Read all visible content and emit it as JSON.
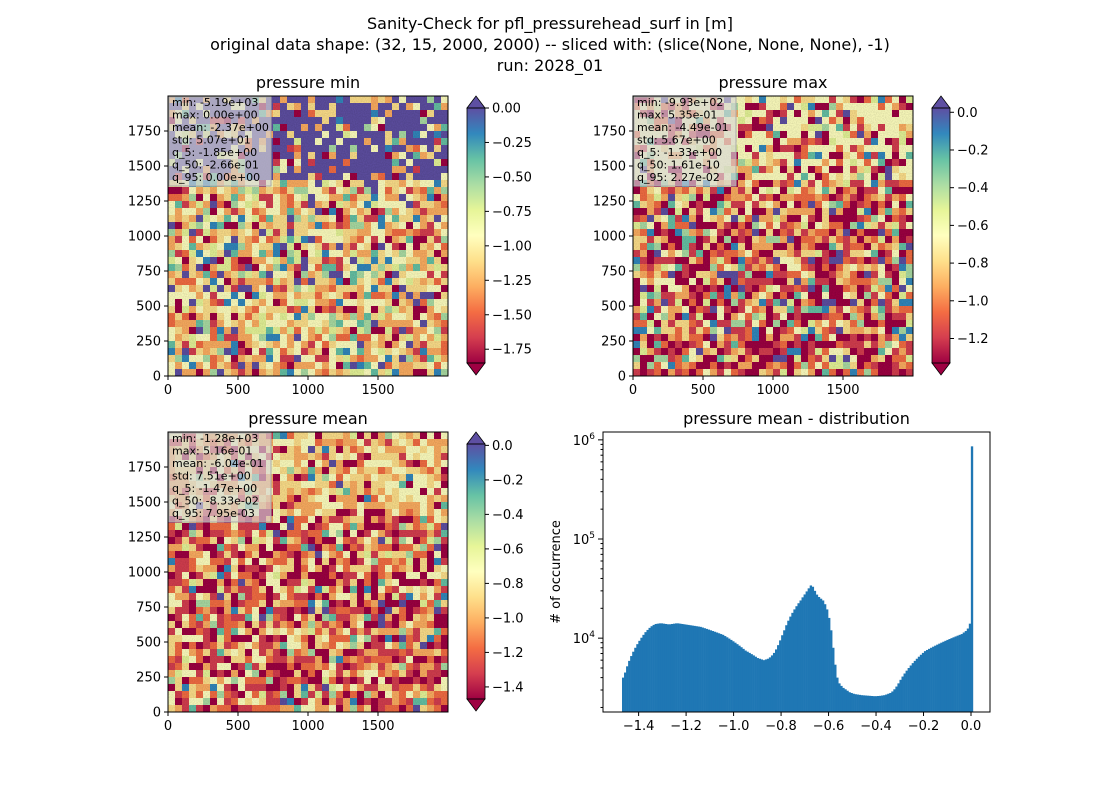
{
  "figure": {
    "title_lines": [
      "Sanity-Check for pfl_pressurehead_surf in [m]",
      "original data shape: (32, 15, 2000, 2000) -- sliced with: (slice(None, None, None), -1)",
      "run: 2028_01"
    ]
  },
  "colors": {
    "spectral": [
      "#9e0142",
      "#d53e4f",
      "#f46d43",
      "#fdae61",
      "#fee08b",
      "#ffffbf",
      "#e6f598",
      "#abdda4",
      "#66c2a5",
      "#3288bd",
      "#5e4fa2"
    ],
    "hist_bar": "#1f77b4"
  },
  "chart_data": [
    {
      "type": "heatmap",
      "title": "pressure min",
      "xlim": [
        0,
        2000
      ],
      "ylim": [
        0,
        2000
      ],
      "x_ticks": [
        "0",
        "500",
        "1000",
        "1500"
      ],
      "y_ticks": [
        "0",
        "250",
        "500",
        "750",
        "1000",
        "1250",
        "1500",
        "1750"
      ],
      "colorbar": {
        "vmin": -1.85,
        "vmax": 0.0,
        "extend": "both",
        "ticks": [
          "0.00",
          "-0.25",
          "-0.50",
          "-0.75",
          "-1.00",
          "-1.25",
          "-1.50",
          "-1.75"
        ],
        "tick_values": [
          0.0,
          -0.25,
          -0.5,
          -0.75,
          -1.0,
          -1.25,
          -1.5,
          -1.75
        ]
      },
      "stats": [
        "min: -5.19e+03",
        "max: 0.00e+00",
        "mean: -2.37e+00",
        "std: 5.07e+01",
        "q_5: -1.85e+00",
        "q_50: -2.66e-01",
        "q_95: 0.00e+00"
      ]
    },
    {
      "type": "heatmap",
      "title": "pressure max",
      "xlim": [
        0,
        2000
      ],
      "ylim": [
        0,
        2000
      ],
      "x_ticks": [
        "0",
        "500",
        "1000",
        "1500"
      ],
      "y_ticks": [
        "0",
        "250",
        "500",
        "750",
        "1000",
        "1250",
        "1500",
        "1750"
      ],
      "colorbar": {
        "vmin": -1.33,
        "vmax": 0.0227,
        "extend": "both",
        "ticks": [
          "0.0",
          "-0.2",
          "-0.4",
          "-0.6",
          "-0.8",
          "-1.0",
          "-1.2"
        ],
        "tick_values": [
          0.0,
          -0.2,
          -0.4,
          -0.6,
          -0.8,
          -1.0,
          -1.2
        ]
      },
      "stats": [
        "min: -9.93e+02",
        "max: 5.35e-01",
        "mean: -4.49e-01",
        "std: 5.67e+00",
        "q_5: -1.33e+00",
        "q_50: 1.61e-10",
        "q_95: 2.27e-02"
      ]
    },
    {
      "type": "heatmap",
      "title": "pressure mean",
      "xlim": [
        0,
        2000
      ],
      "ylim": [
        0,
        2000
      ],
      "x_ticks": [
        "0",
        "500",
        "1000",
        "1500"
      ],
      "y_ticks": [
        "0",
        "250",
        "500",
        "750",
        "1000",
        "1250",
        "1500",
        "1750"
      ],
      "colorbar": {
        "vmin": -1.47,
        "vmax": 0.00795,
        "extend": "both",
        "ticks": [
          "0.0",
          "-0.2",
          "-0.4",
          "-0.6",
          "-0.8",
          "-1.0",
          "-1.2",
          "-1.4"
        ],
        "tick_values": [
          0.0,
          -0.2,
          -0.4,
          -0.6,
          -0.8,
          -1.0,
          -1.2,
          -1.4
        ]
      },
      "stats": [
        "min: -1.28e+03",
        "max: 5.16e-01",
        "mean: -6.04e-01",
        "std: 7.51e+00",
        "q_5: -1.47e+00",
        "q_50: -8.33e-02",
        "q_95: 7.95e-03"
      ]
    },
    {
      "type": "bar",
      "title": "pressure mean - distribution",
      "xlabel": "",
      "ylabel": "# of occurrence",
      "yscale": "log",
      "xlim": [
        -1.55,
        0.08
      ],
      "ylim": [
        1800,
        1200000
      ],
      "x_ticks": [
        -1.4,
        -1.2,
        -1.0,
        -0.8,
        -0.6,
        -0.4,
        -0.2,
        0.0
      ],
      "x_tick_labels": [
        "−1.4",
        "−1.2",
        "−1.0",
        "−0.8",
        "−0.6",
        "−0.4",
        "−0.2",
        "0.0"
      ],
      "y_tick_labels": [
        {
          "value": 10000,
          "base": "10",
          "exp": "4"
        },
        {
          "value": 100000,
          "base": "10",
          "exp": "5"
        },
        {
          "value": 1000000,
          "base": "10",
          "exp": "6"
        }
      ],
      "bin_range": [
        -1.47,
        0.00795
      ],
      "bin_counts": [
        4000,
        4500,
        5200,
        5900,
        6600,
        7300,
        8000,
        8700,
        9400,
        10100,
        10800,
        11500,
        12100,
        12700,
        13200,
        13600,
        13900,
        14000,
        14100,
        14100,
        14000,
        13900,
        13800,
        13800,
        13900,
        14000,
        14100,
        14100,
        14000,
        13900,
        13800,
        13700,
        13600,
        13500,
        13400,
        13300,
        13200,
        13100,
        13000,
        12800,
        12600,
        12400,
        12200,
        12000,
        11800,
        11600,
        11400,
        11200,
        11000,
        10800,
        10500,
        10200,
        9900,
        9600,
        9300,
        9000,
        8700,
        8400,
        8100,
        7800,
        7500,
        7300,
        7100,
        6900,
        6700,
        6500,
        6300,
        6200,
        6100,
        6000,
        6100,
        6200,
        6400,
        6700,
        7100,
        7700,
        8500,
        9500,
        10700,
        12000,
        13500,
        15000,
        16500,
        18000,
        19500,
        21000,
        22500,
        24000,
        25800,
        27600,
        29600,
        31800,
        34000,
        33000,
        30000,
        27500,
        26000,
        25000,
        24000,
        22000,
        19500,
        16000,
        12000,
        8000,
        5400,
        4000,
        3500,
        3300,
        3150,
        3050,
        2950,
        2850,
        2800,
        2750,
        2720,
        2700,
        2680,
        2660,
        2650,
        2640,
        2630,
        2620,
        2610,
        2600,
        2600,
        2610,
        2620,
        2640,
        2660,
        2700,
        2750,
        2800,
        2900,
        3050,
        3250,
        3500,
        3800,
        4100,
        4400,
        4700,
        5000,
        5300,
        5600,
        5900,
        6200,
        6500,
        6800,
        7100,
        7400,
        7600,
        7800,
        8000,
        8200,
        8400,
        8600,
        8800,
        9000,
        9200,
        9400,
        9600,
        9800,
        10000,
        10200,
        10400,
        10600,
        10800,
        11000,
        11400,
        11800,
        12500,
        14000,
        860000
      ]
    }
  ]
}
